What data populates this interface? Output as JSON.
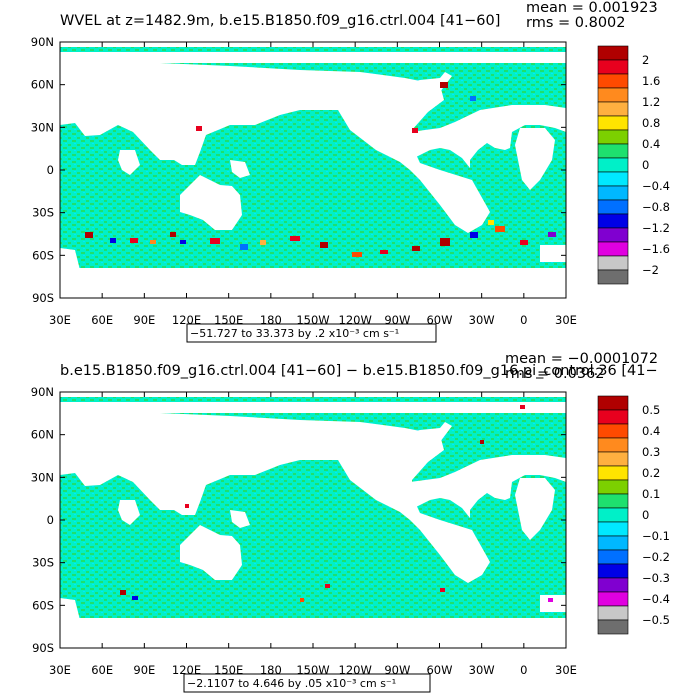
{
  "panels": [
    {
      "id": "top",
      "title": "WVEL at z=1482.9m, b.e15.B1850.f09_g16.ctrl.004 [41−60]",
      "stats": {
        "mean": "mean = 0.001923",
        "rms": "rms = 0.8002"
      },
      "range_label": "−51.727 to 33.373 by .2 x10⁻³ cm s⁻¹",
      "colorbar_labels": [
        "2",
        "1.6",
        "1.2",
        "0.8",
        "0.4",
        "0",
        "−0.4",
        "−0.8",
        "−1.2",
        "−1.6",
        "−2"
      ]
    },
    {
      "id": "bottom",
      "title": "b.e15.B1850.f09_g16.ctrl.004 [41−60] − b.e15.B1850.f09_g16.pi_control.36 [41−",
      "stats": {
        "mean": "mean = −0.0001072",
        "rms": "rms = 0.0362"
      },
      "range_label": "−2.1107 to 4.646 by .05 x10⁻³ cm s⁻¹",
      "colorbar_labels": [
        "0.5",
        "0.4",
        "0.3",
        "0.2",
        "0.1",
        "0",
        "−0.1",
        "−0.2",
        "−0.3",
        "−0.4",
        "−0.5"
      ]
    }
  ],
  "chart_data": {
    "type": "heatmap",
    "x_ticks": [
      "30E",
      "60E",
      "90E",
      "120E",
      "150E",
      "180",
      "150W",
      "120W",
      "90W",
      "60W",
      "30W",
      "0",
      "30E"
    ],
    "y_ticks": [
      "90N",
      "60N",
      "30N",
      "0",
      "30S",
      "60S",
      "90S"
    ],
    "colorbar_colors": [
      "#b00000",
      "#e8001e",
      "#ff4a00",
      "#ff8a1e",
      "#ffb040",
      "#ffe400",
      "#7cd000",
      "#1ee06e",
      "#00f0c8",
      "#00e8ff",
      "#00b8ff",
      "#0070ff",
      "#0000e6",
      "#8000d0",
      "#e000e0",
      "#c8c8c8",
      "#6e6e6e"
    ],
    "ocean_color": "#00f0c8",
    "land_color": "#ffffff"
  }
}
